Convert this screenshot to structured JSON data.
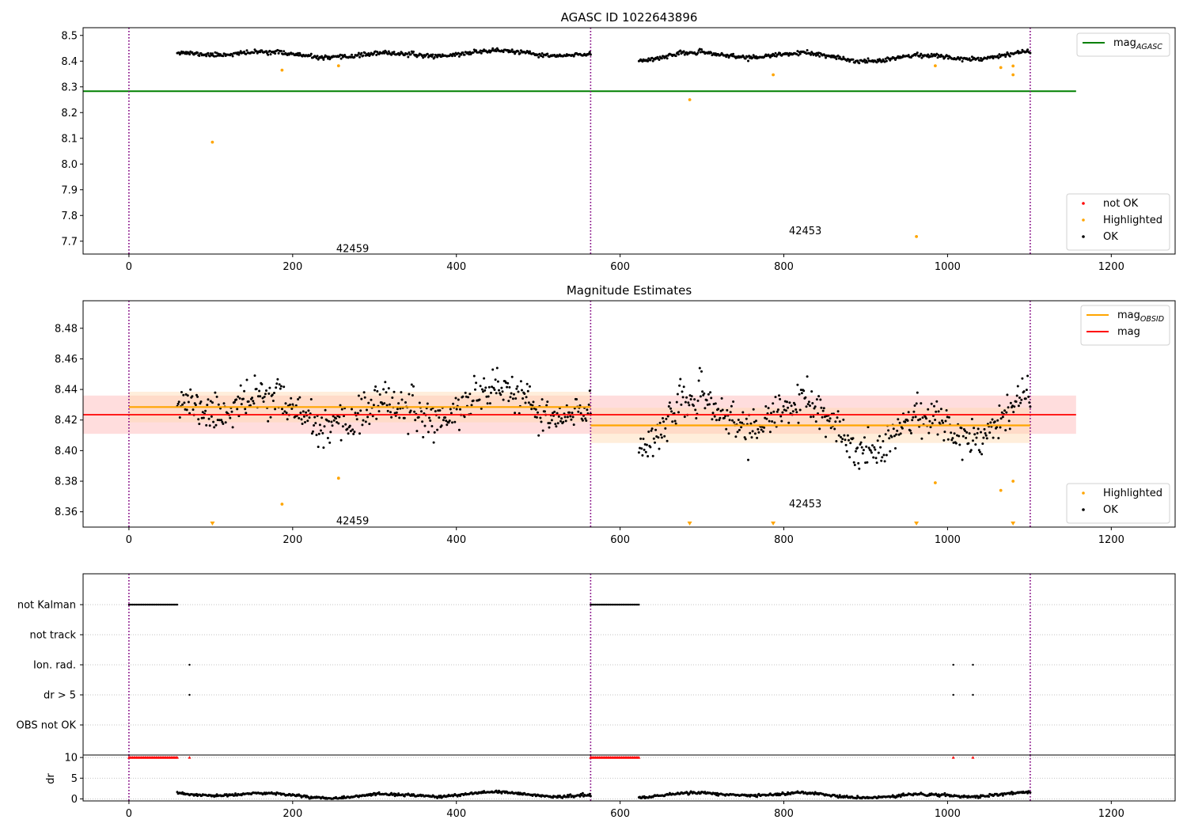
{
  "figure": {
    "width": 1500,
    "height": 1050
  },
  "colors": {
    "ok": "#000000",
    "highlighted": "#ffa500",
    "not_ok": "#ff0000",
    "agasc_line": "#008000",
    "mag_line": "#ff0000",
    "mag_obsid_line": "#ffa500",
    "obs_boundary": "#800080",
    "mag_band": "#ffb3b3",
    "obsid_band": "#ffdab0"
  },
  "chart_data": [
    {
      "id": "top",
      "type": "scatter",
      "title": "AGASC ID 1022643896",
      "xlabel": "",
      "ylabel": "",
      "xlim": [
        -56,
        1278
      ],
      "ylim": [
        7.65,
        8.53
      ],
      "xticks": [
        0,
        200,
        400,
        600,
        800,
        1000,
        1200
      ],
      "xtick_labels": [
        "0",
        "200",
        "400",
        "600",
        "800",
        "1000",
        "1200"
      ],
      "yticks": [
        7.7,
        7.8,
        7.9,
        8.0,
        8.1,
        8.2,
        8.3,
        8.4,
        8.5
      ],
      "ytick_labels": [
        "7.7",
        "7.8",
        "7.9",
        "8.0",
        "8.1",
        "8.2",
        "8.3",
        "8.4",
        "8.5"
      ],
      "grid": false,
      "obs_boundaries": [
        0,
        564,
        1101
      ],
      "obsid_labels": [
        {
          "text": "42459",
          "x": 260,
          "y": 7.67
        },
        {
          "text": "42453",
          "x": 813,
          "y": 7.74
        }
      ],
      "hlines": [
        {
          "name": "mag_AGASC",
          "y": 8.283,
          "x0": -56,
          "x1": 1157,
          "color": "#008000"
        }
      ],
      "ok_segments": [
        {
          "x0": 59,
          "x1": 564,
          "base": 8.427,
          "amp": 0.012,
          "noise": 0.004,
          "n": 470
        },
        {
          "x0": 623,
          "x1": 1101,
          "base": 8.418,
          "amp": 0.016,
          "noise": 0.004,
          "n": 445
        }
      ],
      "highlighted_points": [
        {
          "x": 102,
          "y": 8.085
        },
        {
          "x": 187,
          "y": 8.365
        },
        {
          "x": 256,
          "y": 8.382
        },
        {
          "x": 685,
          "y": 8.25
        },
        {
          "x": 787,
          "y": 8.347
        },
        {
          "x": 962,
          "y": 7.718
        },
        {
          "x": 985,
          "y": 8.382
        },
        {
          "x": 1065,
          "y": 8.375
        },
        {
          "x": 1080,
          "y": 8.381
        },
        {
          "x": 1080,
          "y": 8.347
        }
      ],
      "legend_lines": [
        {
          "label": "mag",
          "sub": "AGASC",
          "color": "#008000"
        }
      ],
      "legend_points": [
        {
          "label": "not OK",
          "color": "#ff0000"
        },
        {
          "label": "Highlighted",
          "color": "#ffa500"
        },
        {
          "label": "OK",
          "color": "#000000"
        }
      ]
    },
    {
      "id": "middle",
      "type": "scatter",
      "title": "Magnitude Estimates",
      "xlabel": "",
      "ylabel": "",
      "xlim": [
        -56,
        1278
      ],
      "ylim": [
        8.35,
        8.498
      ],
      "xticks": [
        0,
        200,
        400,
        600,
        800,
        1000,
        1200
      ],
      "xtick_labels": [
        "0",
        "200",
        "400",
        "600",
        "800",
        "1000",
        "1200"
      ],
      "yticks": [
        8.36,
        8.38,
        8.4,
        8.42,
        8.44,
        8.46,
        8.48
      ],
      "ytick_labels": [
        "8.36",
        "8.38",
        "8.40",
        "8.42",
        "8.44",
        "8.46",
        "8.48"
      ],
      "grid": false,
      "obs_boundaries": [
        0,
        564,
        1101
      ],
      "obsid_labels": [
        {
          "text": "42459",
          "x": 260,
          "y": 8.354
        },
        {
          "text": "42453",
          "x": 813,
          "y": 8.365
        }
      ],
      "mag": {
        "y": 8.4235,
        "band": [
          8.411,
          8.436
        ],
        "x0": -56,
        "x1": 1157
      },
      "mag_obsid": [
        {
          "x0": 0,
          "x1": 564,
          "y": 8.4285,
          "band": [
            8.4185,
            8.4385
          ]
        },
        {
          "x0": 564,
          "x1": 1101,
          "y": 8.4165,
          "band": [
            8.405,
            8.428
          ]
        }
      ],
      "ok_segments": [
        {
          "x0": 59,
          "x1": 564,
          "base": 8.427,
          "amp": 0.012,
          "noise": 0.006,
          "n": 470
        },
        {
          "x0": 623,
          "x1": 1101,
          "base": 8.418,
          "amp": 0.016,
          "noise": 0.006,
          "n": 445
        }
      ],
      "highlighted_points": [
        {
          "x": 187,
          "y": 8.365
        },
        {
          "x": 256,
          "y": 8.382
        },
        {
          "x": 985,
          "y": 8.379
        },
        {
          "x": 1065,
          "y": 8.374
        },
        {
          "x": 1080,
          "y": 8.38
        }
      ],
      "below_range_markers": [
        102,
        685,
        787,
        962,
        1080
      ],
      "legend_lines": [
        {
          "label": "mag",
          "sub": "OBSID",
          "color": "#ffa500"
        },
        {
          "label": "mag",
          "sub": "",
          "color": "#ff0000"
        }
      ],
      "legend_points": [
        {
          "label": "Highlighted",
          "color": "#ffa500"
        },
        {
          "label": "OK",
          "color": "#000000"
        }
      ]
    },
    {
      "id": "flags",
      "type": "scatter",
      "title": "",
      "xlabel": "",
      "ylabel": "",
      "xlim": [
        -56,
        1278
      ],
      "categories": [
        "not Kalman",
        "not track",
        "Ion. rad.",
        "dr > 5",
        "OBS not OK"
      ],
      "grid": true,
      "obs_boundaries": [
        0,
        564,
        1101
      ],
      "flag_runs": [
        {
          "category": "not Kalman",
          "x0": 0,
          "x1": 59,
          "n": 40
        },
        {
          "category": "not Kalman",
          "x0": 564,
          "x1": 623,
          "n": 40
        }
      ],
      "flag_points": [
        {
          "category": "Ion. rad.",
          "x": 74
        },
        {
          "category": "Ion. rad.",
          "x": 1007
        },
        {
          "category": "Ion. rad.",
          "x": 1031
        },
        {
          "category": "dr > 5",
          "x": 74
        },
        {
          "category": "dr > 5",
          "x": 1007
        },
        {
          "category": "dr > 5",
          "x": 1031
        }
      ]
    },
    {
      "id": "dr",
      "type": "scatter",
      "title": "",
      "xlabel": "",
      "ylabel": "dr",
      "xlim": [
        -56,
        1278
      ],
      "ylim": [
        -0.5,
        10.6
      ],
      "xticks": [
        0,
        200,
        400,
        600,
        800,
        1000,
        1200
      ],
      "xtick_labels": [
        "0",
        "200",
        "400",
        "600",
        "800",
        "1000",
        "1200"
      ],
      "yticks": [
        0,
        5,
        10
      ],
      "ytick_labels": [
        "0",
        "5",
        "10"
      ],
      "grid": true,
      "obs_boundaries": [
        0,
        564,
        1101
      ],
      "capped_runs": [
        {
          "x0": 0,
          "x1": 59,
          "n": 40,
          "y": 10
        },
        {
          "x0": 564,
          "x1": 623,
          "n": 40,
          "y": 10
        }
      ],
      "capped_points": [
        {
          "x": 74,
          "y": 10
        },
        {
          "x": 1007,
          "y": 10
        },
        {
          "x": 1031,
          "y": 10
        }
      ],
      "ok_segments": [
        {
          "x0": 59,
          "x1": 564,
          "base": 0.9,
          "amp": 0.6,
          "noise": 0.15,
          "n": 470
        },
        {
          "x0": 623,
          "x1": 1101,
          "base": 0.9,
          "amp": 0.6,
          "noise": 0.15,
          "n": 445
        }
      ]
    }
  ]
}
